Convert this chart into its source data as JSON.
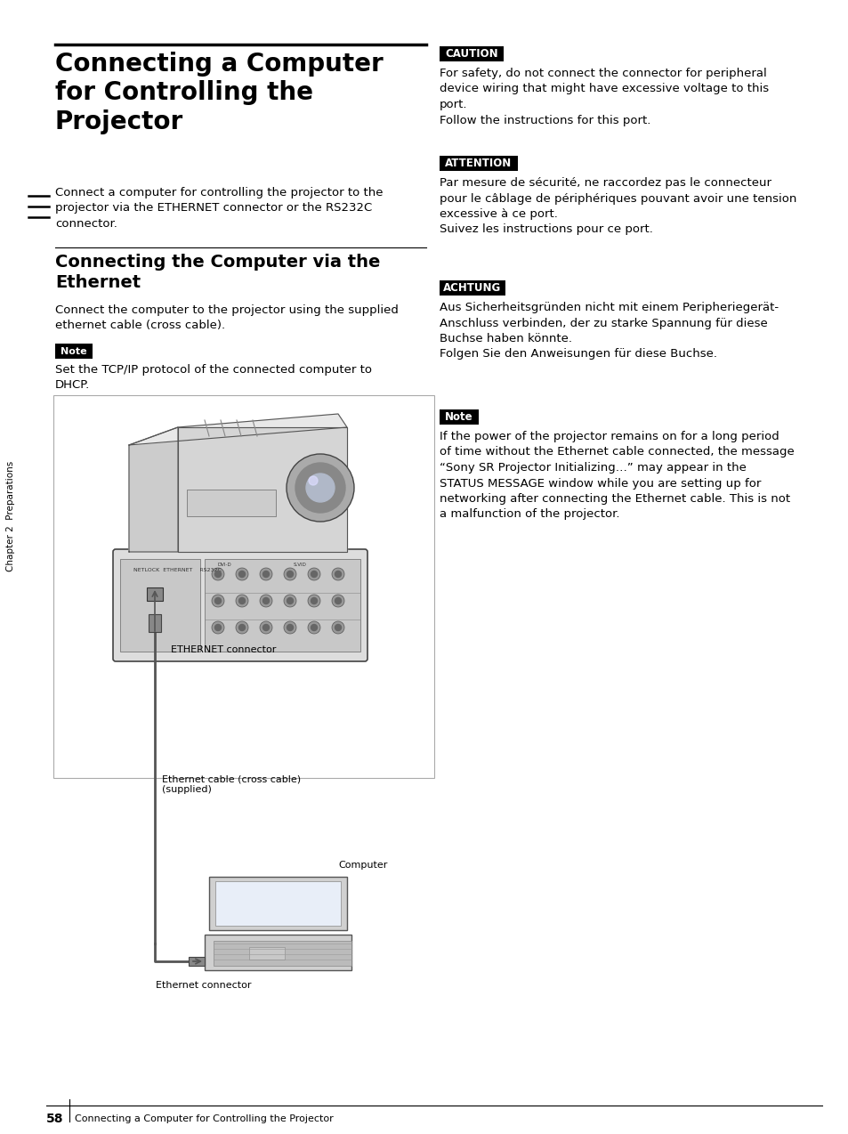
{
  "page_bg": "#ffffff",
  "title": "Connecting a Computer\nfor Controlling the\nProjector",
  "title_fontsize": 20,
  "body_fontsize": 9.5,
  "section2_title": "Connecting the Computer via the\nEthernet",
  "section2_fontsize": 14,
  "intro_text": "Connect a computer for controlling the projector to the\nprojector via the ETHERNET connector or the RS232C\nconnector.",
  "section2_body": "Connect the computer to the projector using the supplied\nethernet cable (cross cable).",
  "note1_label": "Note",
  "note1_text": "Set the TCP/IP protocol of the connected computer to\nDHCP.",
  "caution_label": "CAUTION",
  "caution_text": "For safety, do not connect the connector for peripheral\ndevice wiring that might have excessive voltage to this\nport.\nFollow the instructions for this port.",
  "attention_label": "ATTENTION",
  "attention_text": "Par mesure de sécurité, ne raccordez pas le connecteur\npour le câblage de périphériques pouvant avoir une tension\nexcessive à ce port.\nSuivez les instructions pour ce port.",
  "achtung_label": "ACHTUNG",
  "achtung_text": "Aus Sicherheitsgründen nicht mit einem Peripheriegerät-\nAnschluss verbinden, der zu starke Spannung für diese\nBuchse haben könnte.\nFolgen Sie den Anweisungen für diese Buchse.",
  "note2_label": "Note",
  "note2_text": "If the power of the projector remains on for a long period\nof time without the Ethernet cable connected, the message\n“Sony SR Projector Initializing…” may appear in the\nSTATUS MESSAGE window while you are setting up for\nnetworking after connecting the Ethernet cable. This is not\na malfunction of the projector.",
  "side_label": "Chapter 2  Preparations",
  "bottom_label": "58",
  "bottom_text": "Connecting a Computer for Controlling the Projector",
  "label_bg": "#000000",
  "label_fg": "#ffffff"
}
